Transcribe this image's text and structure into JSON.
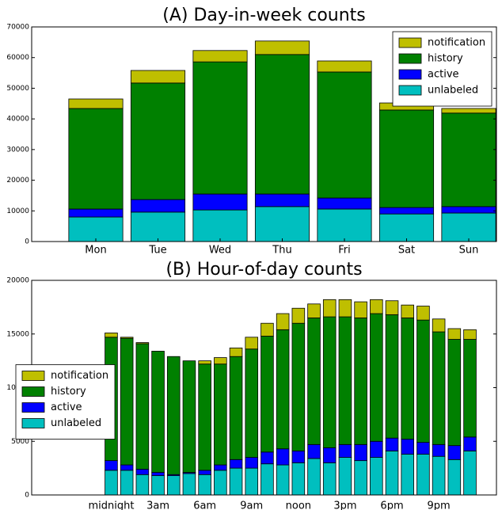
{
  "chart_data": [
    {
      "type": "bar",
      "stacked": true,
      "title": "(A) Day-in-week counts",
      "categories": [
        "Mon",
        "Tue",
        "Wed",
        "Thu",
        "Fri",
        "Sat",
        "Sun"
      ],
      "series": [
        {
          "name": "unlabeled",
          "color": "#00bfbf",
          "values": [
            8000,
            9600,
            10300,
            11400,
            10600,
            9000,
            9300
          ]
        },
        {
          "name": "active",
          "color": "#0000ff",
          "values": [
            2600,
            4100,
            5200,
            4100,
            3600,
            2100,
            2100
          ]
        },
        {
          "name": "history",
          "color": "#008000",
          "values": [
            32800,
            38000,
            43100,
            45500,
            41100,
            31800,
            30500
          ]
        },
        {
          "name": "notification",
          "color": "#bfbf00",
          "values": [
            3100,
            4100,
            3700,
            4400,
            3600,
            2300,
            1500
          ]
        }
      ],
      "ylim": [
        0,
        70000
      ],
      "yticks": [
        0,
        10000,
        20000,
        30000,
        40000,
        50000,
        60000,
        70000
      ],
      "legend": "upper right"
    },
    {
      "type": "bar",
      "stacked": true,
      "title": "(B) Hour-of-day counts",
      "x": [
        0,
        1,
        2,
        3,
        4,
        5,
        6,
        7,
        8,
        9,
        10,
        11,
        12,
        13,
        14,
        15,
        16,
        17,
        18,
        19,
        20,
        21,
        22,
        23
      ],
      "series": [
        {
          "name": "unlabeled",
          "color": "#00bfbf",
          "values": [
            2300,
            2300,
            1900,
            1800,
            1800,
            2000,
            1900,
            2300,
            2500,
            2500,
            2900,
            2800,
            3000,
            3400,
            3000,
            3500,
            3200,
            3500,
            4100,
            3800,
            3800,
            3600,
            3300,
            4100
          ]
        },
        {
          "name": "active",
          "color": "#0000ff",
          "values": [
            900,
            500,
            500,
            300,
            100,
            100,
            400,
            500,
            800,
            1000,
            1100,
            1500,
            1100,
            1300,
            1400,
            1200,
            1500,
            1500,
            1200,
            1400,
            1100,
            1100,
            1300,
            1300
          ]
        },
        {
          "name": "history",
          "color": "#008000",
          "values": [
            11500,
            11800,
            11700,
            11300,
            11000,
            10400,
            9900,
            9400,
            9600,
            10100,
            10800,
            11100,
            11900,
            11800,
            12200,
            11900,
            11800,
            11900,
            11500,
            11300,
            11400,
            10500,
            9900,
            9100
          ]
        },
        {
          "name": "notification",
          "color": "#bfbf00",
          "values": [
            400,
            100,
            100,
            0,
            0,
            0,
            300,
            600,
            800,
            1100,
            1200,
            1500,
            1400,
            1300,
            1600,
            1600,
            1500,
            1300,
            1300,
            1200,
            1300,
            1200,
            1000,
            900
          ]
        }
      ],
      "xlim": [
        -5.1,
        24.7
      ],
      "xticks": [
        {
          "value": 0,
          "label": "midnight"
        },
        {
          "value": 3,
          "label": "3am"
        },
        {
          "value": 6,
          "label": "6am"
        },
        {
          "value": 9,
          "label": "9am"
        },
        {
          "value": 12,
          "label": "noon"
        },
        {
          "value": 15,
          "label": "3pm"
        },
        {
          "value": 18,
          "label": "6pm"
        },
        {
          "value": 21,
          "label": "9pm"
        }
      ],
      "ylim": [
        0,
        20000
      ],
      "yticks": [
        0,
        5000,
        10000,
        15000,
        20000
      ],
      "legend": "center left"
    }
  ]
}
